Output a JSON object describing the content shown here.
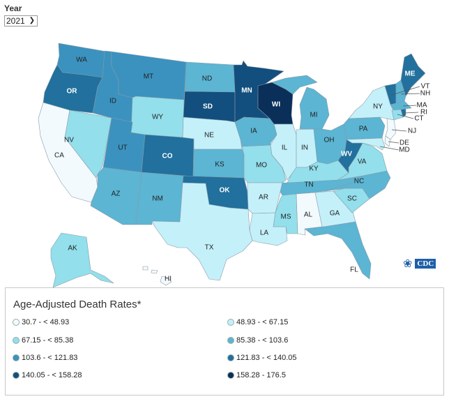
{
  "year": {
    "label": "Year",
    "selected": "2021"
  },
  "legend": {
    "title": "Age-Adjusted Death Rates*",
    "bins": [
      {
        "label": "30.7 - < 48.93",
        "color": "#f2fafd"
      },
      {
        "label": "48.93 - < 67.15",
        "color": "#c4f0fa"
      },
      {
        "label": "67.15 - < 85.38",
        "color": "#93dfec"
      },
      {
        "label": "85.38 - < 103.6",
        "color": "#5bb5d3"
      },
      {
        "label": "103.6 - < 121.83",
        "color": "#3b92bf"
      },
      {
        "label": "121.83 - < 140.05",
        "color": "#21709d"
      },
      {
        "label": "140.05 - < 158.28",
        "color": "#124f7e"
      },
      {
        "label": "158.28 - 176.5",
        "color": "#0a2f59"
      }
    ]
  },
  "states": {
    "WA": {
      "label": "WA",
      "bin": 4
    },
    "OR": {
      "label": "OR",
      "bin": 5
    },
    "CA": {
      "label": "CA",
      "bin": 0
    },
    "NV": {
      "label": "NV",
      "bin": 2
    },
    "ID": {
      "label": "ID",
      "bin": 4
    },
    "MT": {
      "label": "MT",
      "bin": 4
    },
    "WY": {
      "label": "WY",
      "bin": 2
    },
    "UT": {
      "label": "UT",
      "bin": 4
    },
    "CO": {
      "label": "CO",
      "bin": 5
    },
    "AZ": {
      "label": "AZ",
      "bin": 3
    },
    "NM": {
      "label": "NM",
      "bin": 3
    },
    "ND": {
      "label": "ND",
      "bin": 3
    },
    "SD": {
      "label": "SD",
      "bin": 6
    },
    "NE": {
      "label": "NE",
      "bin": 1
    },
    "KS": {
      "label": "KS",
      "bin": 3
    },
    "OK": {
      "label": "OK",
      "bin": 5
    },
    "TX": {
      "label": "TX",
      "bin": 1
    },
    "MN": {
      "label": "MN",
      "bin": 6
    },
    "WI": {
      "label": "WI",
      "bin": 7
    },
    "IA": {
      "label": "IA",
      "bin": 3
    },
    "MO": {
      "label": "MO",
      "bin": 2
    },
    "AR": {
      "label": "AR",
      "bin": 1
    },
    "LA": {
      "label": "LA",
      "bin": 1
    },
    "IL": {
      "label": "IL",
      "bin": 1
    },
    "IN": {
      "label": "IN",
      "bin": 1
    },
    "MI": {
      "label": "MI",
      "bin": 3
    },
    "OH": {
      "label": "OH",
      "bin": 3
    },
    "KY": {
      "label": "KY",
      "bin": 2
    },
    "TN": {
      "label": "TN",
      "bin": 3
    },
    "MS": {
      "label": "MS",
      "bin": 2
    },
    "AL": {
      "label": "AL",
      "bin": 0
    },
    "GA": {
      "label": "GA",
      "bin": 1
    },
    "FL": {
      "label": "FL",
      "bin": 3
    },
    "SC": {
      "label": "SC",
      "bin": 2
    },
    "NC": {
      "label": "NC",
      "bin": 3
    },
    "VA": {
      "label": "VA",
      "bin": 2
    },
    "WV": {
      "label": "WV",
      "bin": 5
    },
    "PA": {
      "label": "PA",
      "bin": 3
    },
    "NY": {
      "label": "NY",
      "bin": 1
    },
    "VT": {
      "label": "VT",
      "bin": 5
    },
    "NH": {
      "label": "NH",
      "bin": 3
    },
    "ME": {
      "label": "ME",
      "bin": 5
    },
    "MA": {
      "label": "MA",
      "bin": 3
    },
    "RI": {
      "label": "RI",
      "bin": 5
    },
    "CT": {
      "label": "CT",
      "bin": 2
    },
    "NJ": {
      "label": "NJ",
      "bin": 0
    },
    "DE": {
      "label": "DE",
      "bin": 0
    },
    "MD": {
      "label": "MD",
      "bin": 1
    },
    "AK": {
      "label": "AK",
      "bin": 2
    },
    "HI": {
      "label": "HI",
      "bin": 0
    }
  },
  "logo": {
    "text": "CDC"
  }
}
